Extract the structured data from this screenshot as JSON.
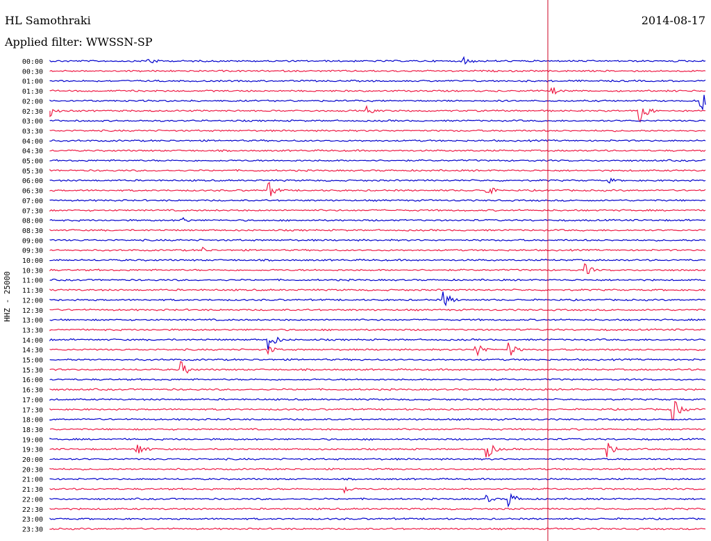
{
  "header": {
    "station": "HL Samothraki",
    "date": "2014-08-17",
    "filter": "Applied filter: WWSSN-SP"
  },
  "colors": {
    "even": "#0000cc",
    "odd": "#ee1a44",
    "marker": "#cc0022",
    "text": "#000000"
  },
  "chart_data": {
    "type": "line",
    "title": "HL Samothraki",
    "ylabel": "HHZ - 25000",
    "grid": false,
    "rows": [
      "00:00",
      "00:30",
      "01:00",
      "01:30",
      "02:00",
      "02:30",
      "03:00",
      "03:30",
      "04:00",
      "04:30",
      "05:00",
      "05:30",
      "06:00",
      "06:30",
      "07:00",
      "07:30",
      "08:00",
      "08:30",
      "09:00",
      "09:30",
      "10:00",
      "10:30",
      "11:00",
      "11:30",
      "12:00",
      "12:30",
      "13:00",
      "13:30",
      "14:00",
      "14:30",
      "15:00",
      "15:30",
      "16:00",
      "16:30",
      "17:00",
      "17:30",
      "18:00",
      "18:30",
      "19:00",
      "19:30",
      "20:00",
      "20:30",
      "21:00",
      "21:30",
      "22:00",
      "22:30",
      "23:00",
      "23:30"
    ],
    "events": [
      {
        "row": "00:00",
        "minute": 4.5,
        "amplitude": 0.8
      },
      {
        "row": "00:00",
        "minute": 19.0,
        "amplitude": 0.8
      },
      {
        "row": "01:30",
        "minute": 23.0,
        "amplitude": 0.7
      },
      {
        "row": "02:30",
        "minute": 0.0,
        "amplitude": 0.9
      },
      {
        "row": "02:30",
        "minute": 14.5,
        "amplitude": 0.8
      },
      {
        "row": "02:30",
        "minute": 27.0,
        "amplitude": 2.0
      },
      {
        "row": "02:00",
        "minute": 29.8,
        "amplitude": 2.0
      },
      {
        "row": "06:30",
        "minute": 10.0,
        "amplitude": 1.5
      },
      {
        "row": "06:30",
        "minute": 20.0,
        "amplitude": 0.9
      },
      {
        "row": "06:00",
        "minute": 25.5,
        "amplitude": 0.6
      },
      {
        "row": "08:00",
        "minute": 6.0,
        "amplitude": 0.6
      },
      {
        "row": "09:30",
        "minute": 7.0,
        "amplitude": 0.5
      },
      {
        "row": "10:30",
        "minute": 24.5,
        "amplitude": 1.0
      },
      {
        "row": "12:00",
        "minute": 18.0,
        "amplitude": 1.6
      },
      {
        "row": "14:00",
        "minute": 10.0,
        "amplitude": 1.8
      },
      {
        "row": "14:30",
        "minute": 10.0,
        "amplitude": 0.8
      },
      {
        "row": "14:30",
        "minute": 19.5,
        "amplitude": 1.6
      },
      {
        "row": "14:30",
        "minute": 21.0,
        "amplitude": 1.3
      },
      {
        "row": "15:30",
        "minute": 6.0,
        "amplitude": 1.4
      },
      {
        "row": "17:30",
        "minute": 28.5,
        "amplitude": 2.0
      },
      {
        "row": "19:30",
        "minute": 4.0,
        "amplitude": 1.2
      },
      {
        "row": "19:30",
        "minute": 20.0,
        "amplitude": 1.5
      },
      {
        "row": "19:30",
        "minute": 25.5,
        "amplitude": 1.4
      },
      {
        "row": "21:30",
        "minute": 13.5,
        "amplitude": 0.7
      },
      {
        "row": "22:00",
        "minute": 20.0,
        "amplitude": 0.6
      },
      {
        "row": "22:00",
        "minute": 21.0,
        "amplitude": 1.4
      }
    ]
  }
}
